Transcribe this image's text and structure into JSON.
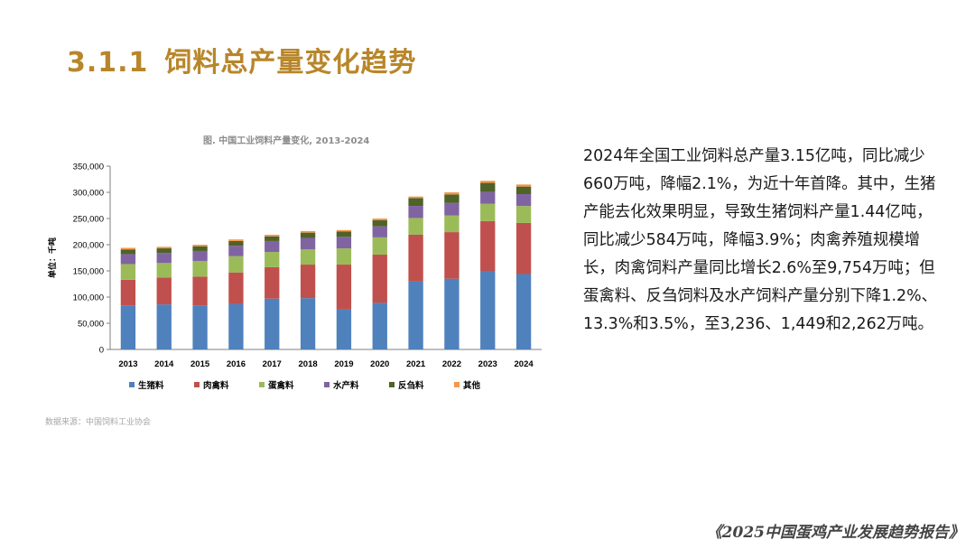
{
  "section": {
    "number": "3.1.1",
    "title": "饲料总产量变化趋势"
  },
  "summary": "2024年全国工业饲料总产量3.15亿吨，同比减少660万吨，降幅2.1%，为近十年首降。其中，生猪产能去化效果明显，导致生猪饲料产量1.44亿吨，同比减少584万吨，降幅3.9%；肉禽养殖规模增长，肉禽饲料产量同比增长2.6%至9,754万吨；但蛋禽料、反刍饲料及水产饲料产量分别下降1.2%、13.3%和3.5%，至3,236、1,449和2,262万吨。",
  "source": "数据来源：中国饲料工业协会",
  "footer": "《2025中国蛋鸡产业发展趋势报告》",
  "chart_data": {
    "type": "bar",
    "stacked": true,
    "title": "图. 中国工业饲料产量变化, 2013-2024",
    "ylabel": "单位：千吨",
    "xlabel": "",
    "ylim": [
      0,
      350000
    ],
    "yticks": [
      0,
      50000,
      100000,
      150000,
      200000,
      250000,
      300000,
      350000
    ],
    "ytick_labels": [
      "0",
      "50,000",
      "100,000",
      "150,000",
      "200,000",
      "250,000",
      "300,000",
      "350,000"
    ],
    "grid": false,
    "legend_position": "bottom",
    "categories": [
      "2013",
      "2014",
      "2015",
      "2016",
      "2017",
      "2018",
      "2019",
      "2020",
      "2021",
      "2022",
      "2023",
      "2024"
    ],
    "series": [
      {
        "name": "生猪料",
        "color": "#4f81bd",
        "values": [
          84000,
          86000,
          84000,
          87000,
          97000,
          98000,
          76000,
          89000,
          130000,
          135000,
          150000,
          144000
        ]
      },
      {
        "name": "肉禽料",
        "color": "#c0504d",
        "values": [
          49000,
          51000,
          55000,
          60000,
          60000,
          64000,
          86000,
          92000,
          89000,
          89000,
          95000,
          97540
        ]
      },
      {
        "name": "蛋禽料",
        "color": "#9bbb59",
        "values": [
          30000,
          28000,
          30000,
          31000,
          29000,
          29000,
          31000,
          33000,
          32000,
          32000,
          33000,
          32360
        ]
      },
      {
        "name": "水产料",
        "color": "#8064a2",
        "values": [
          19000,
          19000,
          19000,
          20000,
          21000,
          22000,
          22000,
          21000,
          23000,
          24000,
          23000,
          22620
        ]
      },
      {
        "name": "反刍料",
        "color": "#4f6228",
        "values": [
          9000,
          9000,
          9000,
          9000,
          9000,
          10000,
          10000,
          12000,
          15000,
          16000,
          17000,
          14490
        ]
      },
      {
        "name": "其他",
        "color": "#f79646",
        "values": [
          3000,
          3000,
          3000,
          3000,
          3000,
          3000,
          3000,
          3000,
          3000,
          4000,
          4000,
          4000
        ]
      }
    ]
  }
}
